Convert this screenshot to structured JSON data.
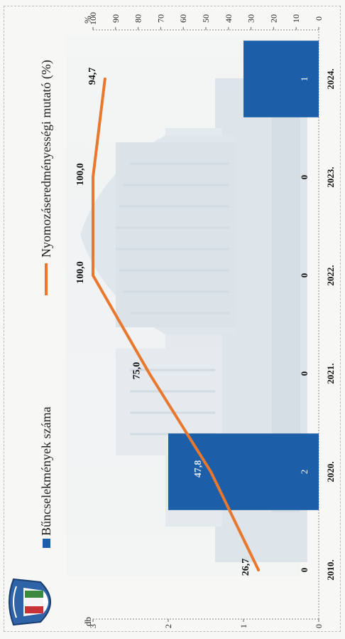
{
  "chart_data": {
    "type": "bar",
    "title": "",
    "categories": [
      "2010.",
      "2020.",
      "2021.",
      "2022.",
      "2023.",
      "2024."
    ],
    "series": [
      {
        "name": "Bűncselekmények száma",
        "kind": "bar",
        "axis": "left",
        "values": [
          0,
          2,
          0,
          0,
          0,
          1
        ],
        "labels": [
          "0",
          "2",
          "0",
          "0",
          "0",
          "1"
        ],
        "color": "#1d5ea8"
      },
      {
        "name": "Nyomozáseredményességi mutató (%)",
        "kind": "line",
        "axis": "right",
        "values": [
          26.7,
          47.8,
          75.0,
          100.0,
          100.0,
          94.7
        ],
        "labels": [
          "26,7",
          "47,8",
          "75,0",
          "100,0",
          "100,0",
          "94,7"
        ],
        "color": "#e8782e"
      }
    ],
    "left_axis": {
      "unit": "db",
      "ylim": [
        0,
        3
      ],
      "ticks": [
        "0",
        "1",
        "2",
        "3"
      ]
    },
    "right_axis": {
      "unit": "%",
      "ylim": [
        0,
        100
      ],
      "ticks": [
        "0",
        "10",
        "20",
        "30",
        "40",
        "50",
        "60",
        "70",
        "80",
        "90",
        "100"
      ]
    },
    "grid": false,
    "legend_position": "top"
  },
  "colors": {
    "bar": "#1d5ea8",
    "line": "#e8782e",
    "axis": "#333333"
  },
  "icons": {
    "logo": "police-crest-icon"
  }
}
